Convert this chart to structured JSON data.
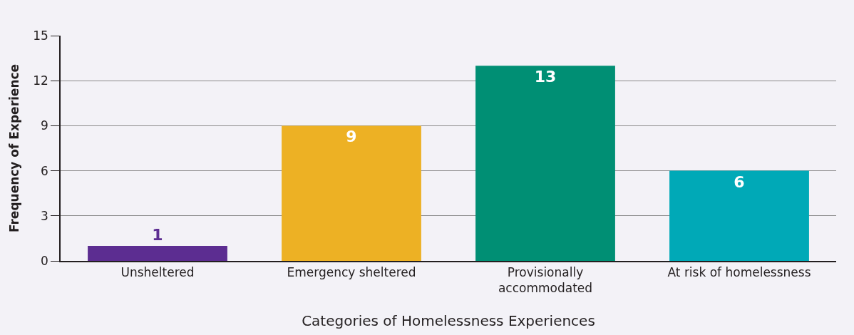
{
  "chart_data": {
    "type": "bar",
    "xlabel": "Categories of Homelessness Experiences",
    "ylabel": "Frequency of Experience",
    "categories": [
      "Unsheltered",
      "Emergency sheltered",
      "Provisionally accommodated",
      "At risk of homelessness"
    ],
    "values": [
      1,
      9,
      13,
      6
    ],
    "colors": [
      "#5c2d91",
      "#edb124",
      "#008f74",
      "#00a9b7"
    ],
    "ylim": [
      0,
      15
    ],
    "yticks": [
      0,
      3,
      6,
      9,
      12,
      15
    ],
    "grid": "y",
    "legend": false,
    "data_labels": true
  }
}
